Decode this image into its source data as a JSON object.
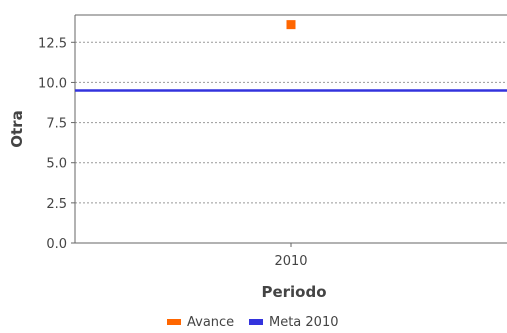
{
  "chart_data": {
    "type": "scatter",
    "title": "",
    "xlabel": "Periodo",
    "ylabel": "Otra",
    "categories": [
      "2010"
    ],
    "ylim": [
      0,
      14.2
    ],
    "yticks": [
      0.0,
      2.5,
      5.0,
      7.5,
      10.0,
      12.5
    ],
    "ytick_labels": [
      "0.0",
      "2.5",
      "5.0",
      "7.5",
      "10.0",
      "12.5"
    ],
    "grid": true,
    "legend_position": "bottom",
    "series": [
      {
        "name": "Avance",
        "marker": "square",
        "color": "#ff6600",
        "points": [
          {
            "x": "2010",
            "y": 13.6
          }
        ]
      },
      {
        "name": "Meta 2010",
        "type": "reference-line",
        "color": "#3333dd",
        "value": 9.5
      }
    ]
  }
}
